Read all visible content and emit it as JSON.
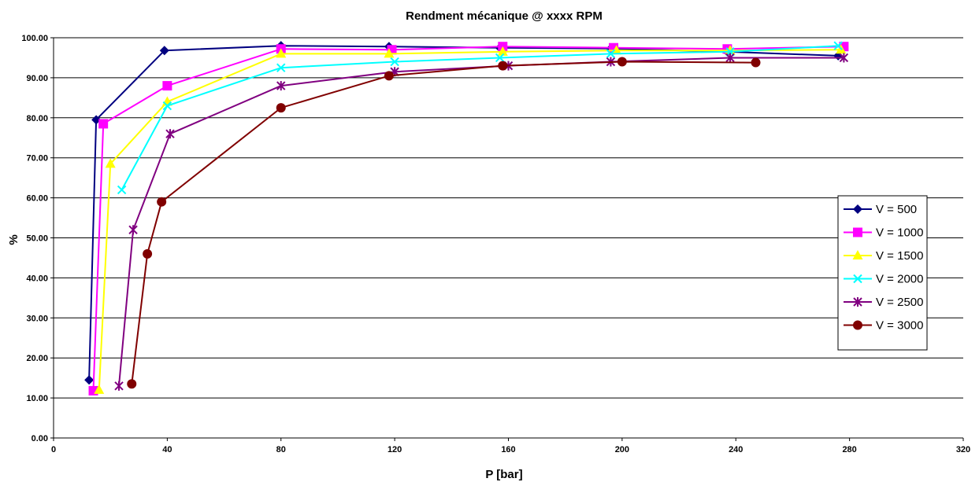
{
  "chart_data": {
    "type": "line",
    "title": "Rendment mécanique  @  xxxx RPM",
    "xlabel": "P [bar]",
    "ylabel": "%",
    "xlim": [
      0,
      320
    ],
    "ylim": [
      0,
      100
    ],
    "xticks": [
      0,
      40,
      80,
      120,
      160,
      200,
      240,
      280,
      320
    ],
    "xtick_labels": [
      "0",
      "40",
      "80",
      "120",
      "160",
      "200",
      "240",
      "280",
      "320"
    ],
    "yticks": [
      0,
      10,
      20,
      30,
      40,
      50,
      60,
      70,
      80,
      90,
      100
    ],
    "ytick_labels": [
      "0.00",
      "10.00",
      "20.00",
      "30.00",
      "40.00",
      "50.00",
      "60.00",
      "70.00",
      "80.00",
      "90.00",
      "100.00"
    ],
    "grid": "horizontal",
    "legend_position": "right",
    "series": [
      {
        "name": "V = 500",
        "color": "#000080",
        "marker": "diamond",
        "x": [
          12.5,
          15,
          39,
          80,
          118,
          157,
          196,
          237,
          276
        ],
        "y": [
          14.5,
          79.5,
          96.8,
          98.0,
          97.8,
          97.5,
          97.3,
          96.5,
          95.5
        ]
      },
      {
        "name": "V = 1000",
        "color": "#ff00ff",
        "marker": "square",
        "x": [
          14,
          17.5,
          40,
          80,
          119,
          158,
          197,
          237,
          278
        ],
        "y": [
          11.8,
          78.5,
          88.0,
          97.2,
          97.0,
          97.8,
          97.5,
          97.2,
          97.8
        ]
      },
      {
        "name": "V = 1500",
        "color": "#ffff00",
        "marker": "triangle",
        "x": [
          16,
          20,
          40,
          80,
          118,
          158,
          198,
          238,
          277
        ],
        "y": [
          12.0,
          68.5,
          84.0,
          96.0,
          96.0,
          96.5,
          96.8,
          96.8,
          97.0
        ]
      },
      {
        "name": "V = 2000",
        "color": "#00ffff",
        "marker": "x",
        "x": [
          24,
          40,
          80,
          120,
          157,
          196,
          238,
          276
        ],
        "y": [
          62.0,
          83.0,
          92.5,
          94.0,
          95.0,
          96.0,
          96.5,
          98.0
        ]
      },
      {
        "name": "V = 2500",
        "color": "#800080",
        "marker": "star",
        "x": [
          23,
          28,
          41,
          80,
          120,
          160,
          196,
          238,
          278
        ],
        "y": [
          13.0,
          52.0,
          76.0,
          88.0,
          91.5,
          93.0,
          94.0,
          95.0,
          95.0
        ]
      },
      {
        "name": "V = 3000",
        "color": "#800000",
        "marker": "circle",
        "x": [
          27.5,
          33,
          38,
          80,
          118,
          158,
          200,
          247
        ],
        "y": [
          13.5,
          46.0,
          59.0,
          82.5,
          90.5,
          93.0,
          94.0,
          93.8
        ]
      }
    ]
  }
}
